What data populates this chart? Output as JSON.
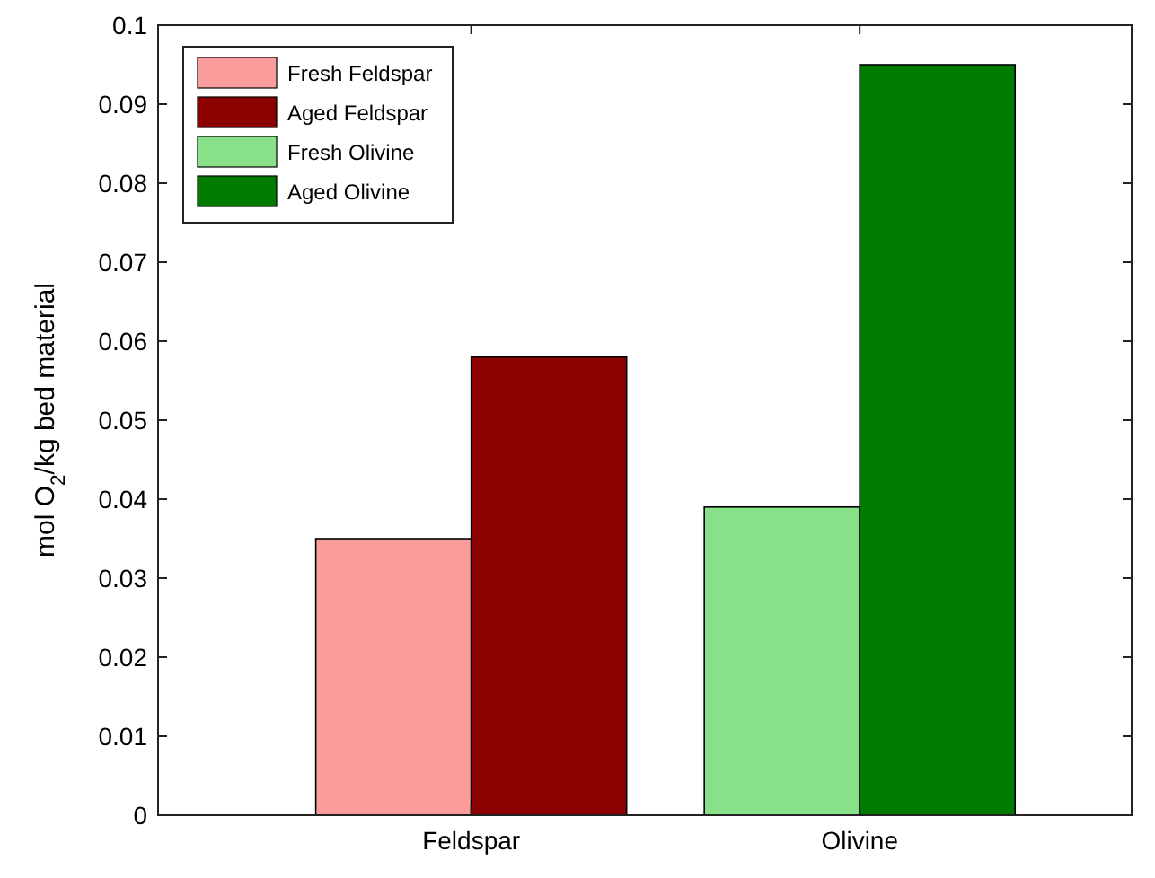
{
  "chart_data": {
    "type": "bar",
    "ylabel": "mol O$_{2}$/kg bed material",
    "categories": [
      "Feldspar",
      "Olivine"
    ],
    "series": [
      {
        "name": "Fresh Feldspar",
        "color": "#fa9c9c",
        "values": [
          0.035,
          null
        ]
      },
      {
        "name": "Aged Feldspar",
        "color": "#8b0000",
        "values": [
          0.058,
          null
        ]
      },
      {
        "name": "Fresh Olivine",
        "color": "#88e088",
        "values": [
          null,
          0.039
        ]
      },
      {
        "name": "Aged Olivine",
        "color": "#007a00",
        "values": [
          null,
          0.095
        ]
      }
    ],
    "ylim": [
      0,
      0.1
    ],
    "yticks": [
      0,
      0.01,
      0.02,
      0.03,
      0.04,
      0.05,
      0.06,
      0.07,
      0.08,
      0.09,
      0.1
    ],
    "grid": false,
    "legend": "top left"
  }
}
